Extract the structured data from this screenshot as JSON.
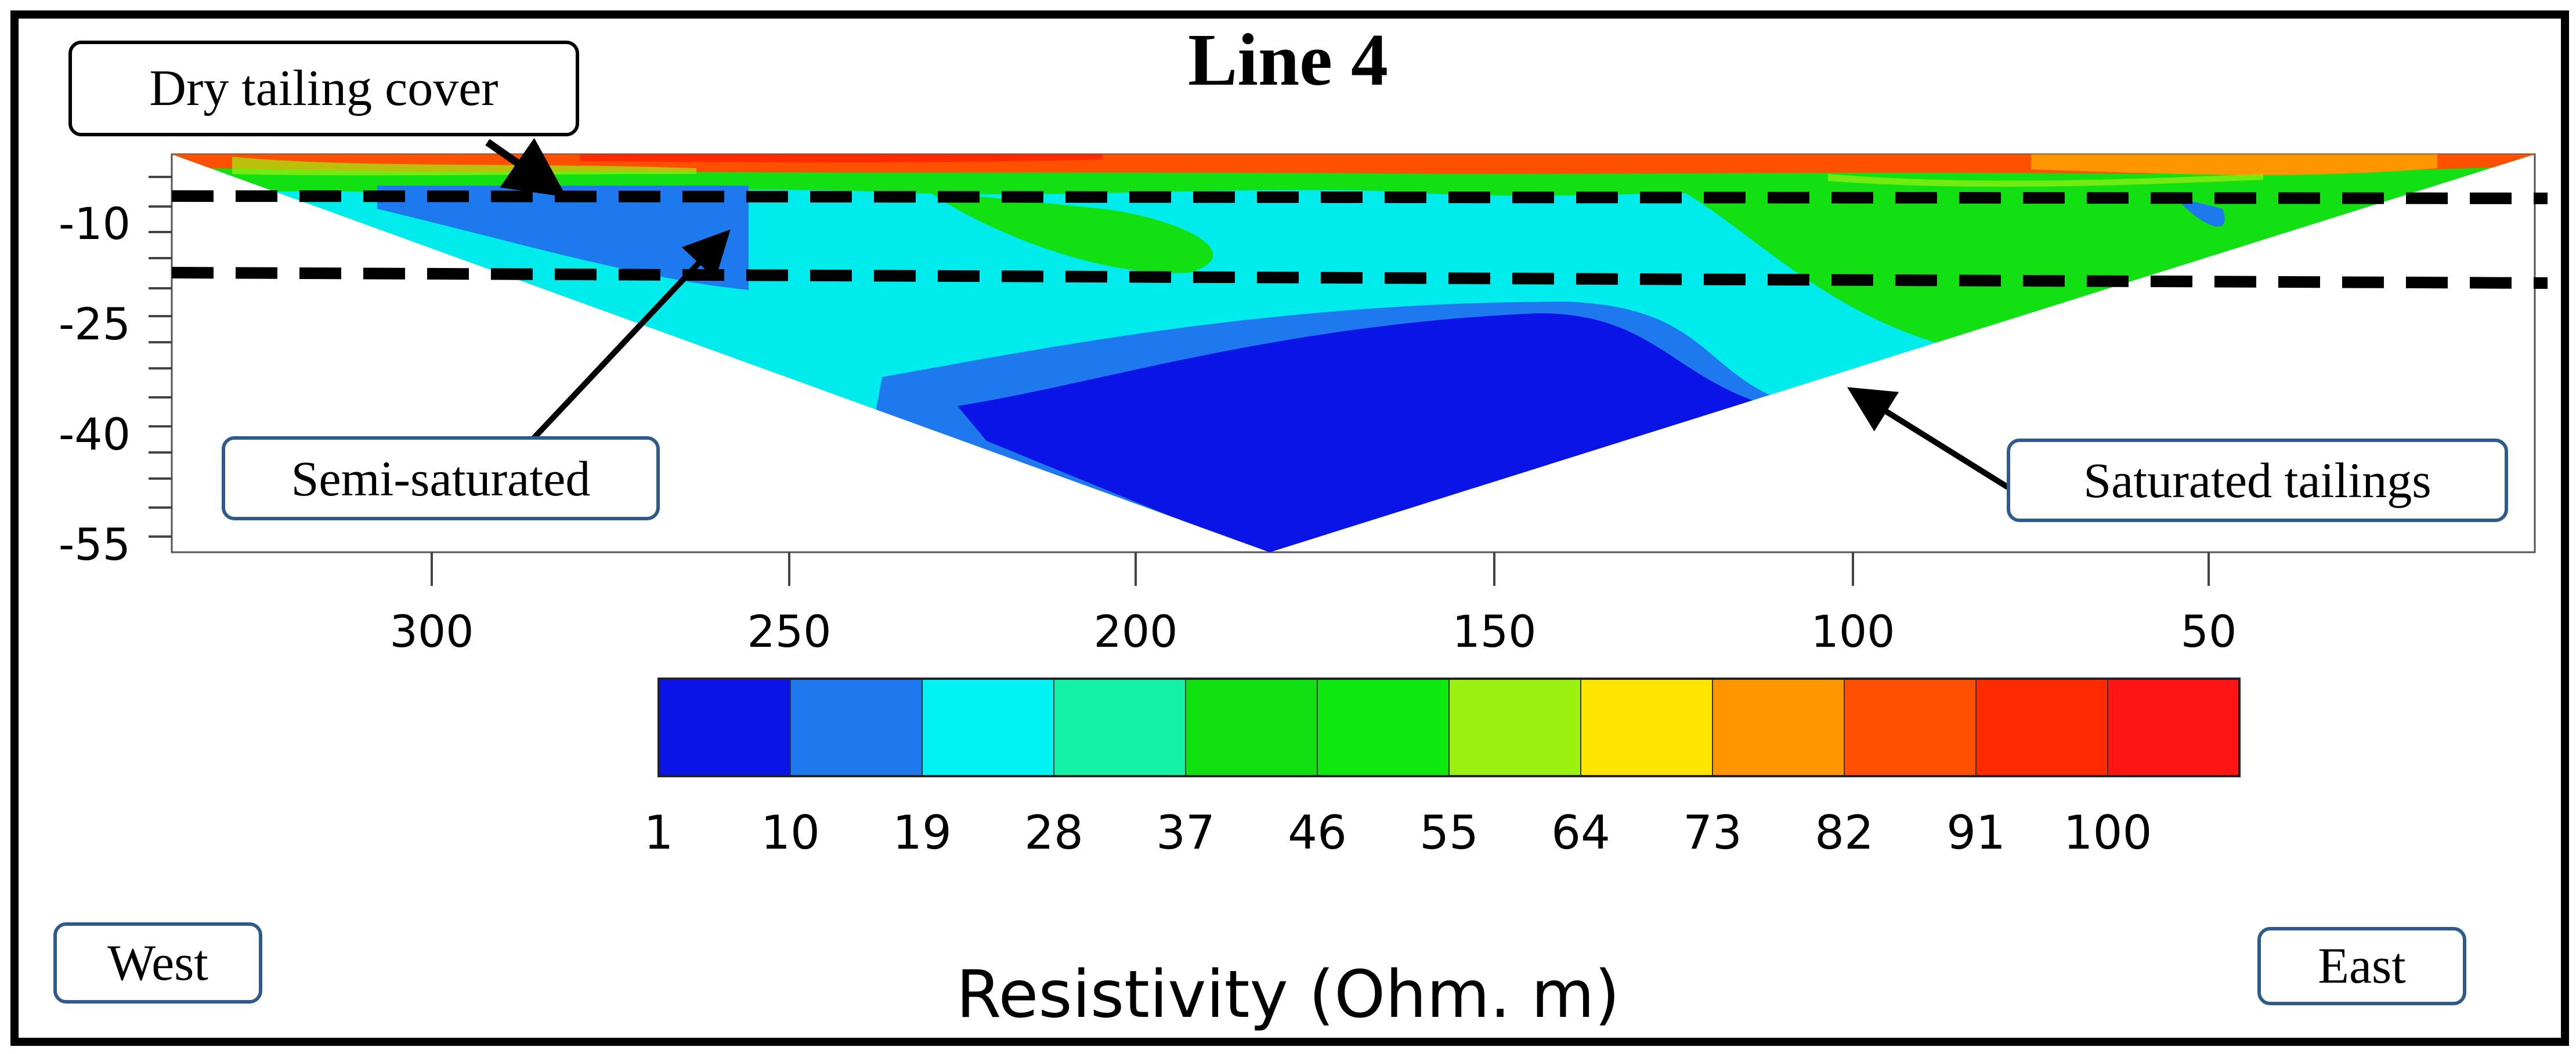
{
  "chart_data": {
    "type": "heatmap",
    "title": "Line 4",
    "xlabel": "",
    "ylabel": "",
    "x_axis": {
      "ticks": [
        300,
        250,
        200,
        150,
        100,
        50
      ],
      "range": [
        337,
        0
      ],
      "direction": "descending"
    },
    "y_axis": {
      "ticks": [
        -10,
        -25,
        -40,
        -55
      ],
      "range": [
        -2,
        -57
      ]
    },
    "colorbar": {
      "label": "Resistivity (Ohm. m)",
      "ticks": [
        "1",
        "10",
        "19",
        "28",
        "37",
        "46",
        "55",
        "64",
        "73",
        "82",
        "91",
        "100"
      ],
      "colors": [
        "#0a14e6",
        "#1e78ee",
        "#00f2f2",
        "#14f2a8",
        "#10e010",
        "#0fe80f",
        "#9cf010",
        "#ffe600",
        "#ff9600",
        "#ff5000",
        "#ff2a00",
        "#ff1414"
      ]
    },
    "annotations": [
      {
        "label": "Dry tailing cover"
      },
      {
        "label": "Semi-saturated"
      },
      {
        "label": "Saturated tailings"
      },
      {
        "label": "West"
      },
      {
        "label": "East"
      }
    ]
  }
}
